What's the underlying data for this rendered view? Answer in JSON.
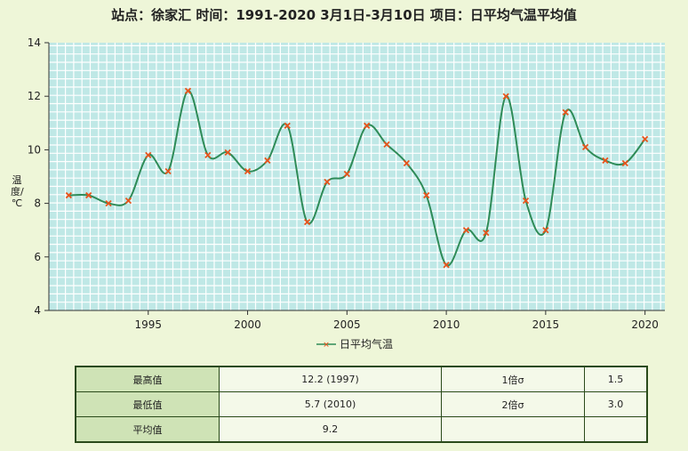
{
  "title": "站点：徐家汇  时间：1991-2020   3月1日-3月10日  项目：日平均气温平均值",
  "chart_data": {
    "type": "line",
    "ylabel": "温度/℃",
    "xlim": [
      1990,
      2021
    ],
    "ylim": [
      4,
      14
    ],
    "yticks": [
      4,
      6,
      8,
      10,
      12,
      14
    ],
    "xticks": [
      1995,
      2000,
      2005,
      2010,
      2015,
      2020
    ],
    "grid": true,
    "legend_position": "bottom-center",
    "colors": {
      "plot_bg": "#bfe8e6",
      "grid": "#ffffff",
      "line": "#2e8b57",
      "marker": "#e8541c"
    },
    "series": [
      {
        "name": "日平均气温",
        "x": [
          1991,
          1992,
          1993,
          1994,
          1995,
          1996,
          1997,
          1998,
          1999,
          2000,
          2001,
          2002,
          2003,
          2004,
          2005,
          2006,
          2007,
          2008,
          2009,
          2010,
          2011,
          2012,
          2013,
          2014,
          2015,
          2016,
          2017,
          2018,
          2019,
          2020
        ],
        "y": [
          8.3,
          8.3,
          8.0,
          8.1,
          9.8,
          9.2,
          12.2,
          9.8,
          9.9,
          9.2,
          9.6,
          10.9,
          7.3,
          8.8,
          9.1,
          10.9,
          10.2,
          9.5,
          8.3,
          5.7,
          7.0,
          6.9,
          12.0,
          8.1,
          7.0,
          11.4,
          10.1,
          9.6,
          9.5,
          10.4
        ]
      }
    ]
  },
  "stats": {
    "row1": {
      "label1": "最高值",
      "value1": "12.2 (1997)",
      "label2": "1倍σ",
      "value2": "1.5"
    },
    "row2": {
      "label1": "最低值",
      "value1": "5.7 (2010)",
      "label2": "2倍σ",
      "value2": "3.0"
    },
    "row3": {
      "label1": "平均值",
      "value1": "9.2",
      "label2": "",
      "value2": ""
    }
  }
}
